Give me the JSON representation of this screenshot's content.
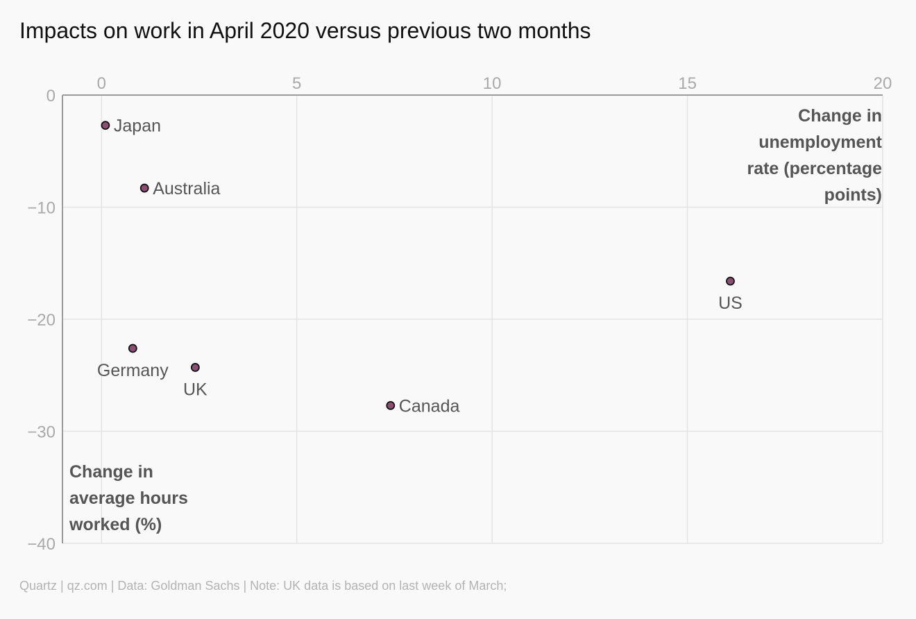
{
  "title": "Impacts on work in April 2020 versus previous two months",
  "footer": "Quartz | qz.com | Data: Goldman Sachs | Note: UK data is based on last week of March;",
  "colors": {
    "point_fill": "#8b4f73",
    "point_stroke": "#111111",
    "grid": "#e4e4e4",
    "axis": "#9a9a9a",
    "tick_text": "#a9a9a9",
    "label_text": "#555555"
  },
  "chart_data": {
    "type": "scatter",
    "title": "Impacts on work in April 2020 versus previous two months",
    "xlabel": [
      "Change in",
      "unemployment",
      "rate (percentage",
      "points)"
    ],
    "ylabel": [
      "Change in",
      "average hours",
      "worked (%)"
    ],
    "xlim": [
      -1,
      20
    ],
    "ylim": [
      -40,
      0
    ],
    "x_ticks": [
      0,
      5,
      10,
      15,
      20
    ],
    "y_ticks": [
      0,
      -10,
      -20,
      -30,
      -40
    ],
    "x_tick_labels": [
      "0",
      "5",
      "10",
      "15",
      "20"
    ],
    "y_tick_labels": [
      "0",
      "−10",
      "−20",
      "−30",
      "−40"
    ],
    "x_axis_position": "top",
    "grid": true,
    "points": [
      {
        "label": "Japan",
        "x": 0.1,
        "y": -2.7,
        "label_pos": "right"
      },
      {
        "label": "Australia",
        "x": 1.1,
        "y": -8.3,
        "label_pos": "right"
      },
      {
        "label": "Germany",
        "x": 0.8,
        "y": -22.6,
        "label_pos": "below"
      },
      {
        "label": "UK",
        "x": 2.4,
        "y": -24.3,
        "label_pos": "below"
      },
      {
        "label": "Canada",
        "x": 7.4,
        "y": -27.7,
        "label_pos": "right"
      },
      {
        "label": "US",
        "x": 16.1,
        "y": -16.6,
        "label_pos": "below"
      }
    ]
  }
}
